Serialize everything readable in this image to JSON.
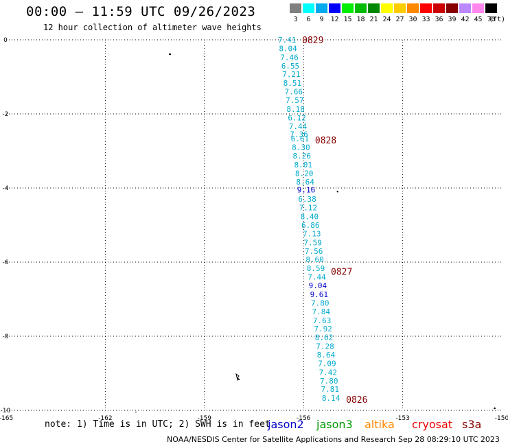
{
  "header": {
    "title": "00:00 – 11:59 UTC 09/26/2023",
    "subtitle": "12 hour collection of altimeter wave heights"
  },
  "legend": {
    "unit": "(ft)",
    "items": [
      {
        "label": "3",
        "color": "#808080"
      },
      {
        "label": "6",
        "color": "#00ffff"
      },
      {
        "label": "9",
        "color": "#00aaee"
      },
      {
        "label": "12",
        "color": "#0000ff"
      },
      {
        "label": "15",
        "color": "#00ee00"
      },
      {
        "label": "18",
        "color": "#00bb00"
      },
      {
        "label": "21",
        "color": "#008800"
      },
      {
        "label": "24",
        "color": "#ffff00"
      },
      {
        "label": "27",
        "color": "#ffcc00"
      },
      {
        "label": "30",
        "color": "#ff8800"
      },
      {
        "label": "33",
        "color": "#ff0000"
      },
      {
        "label": "36",
        "color": "#cc0000"
      },
      {
        "label": "39",
        "color": "#880000"
      },
      {
        "label": "42",
        "color": "#bb88ff"
      },
      {
        "label": "45",
        "color": "#ff88ee"
      },
      {
        "label": "70",
        "color": "#000000"
      }
    ]
  },
  "axes": {
    "lat_labels": [
      "0",
      "-2",
      "-4",
      "-6",
      "-8",
      "-10"
    ],
    "lon_labels": [
      "-165",
      "-162",
      "-159",
      "-156",
      "-153",
      "-150"
    ]
  },
  "time_markers": [
    {
      "label": "0829",
      "lat": 0.0
    },
    {
      "label": "0828",
      "lat": -2.7
    },
    {
      "label": "0827",
      "lat": -6.25
    },
    {
      "label": "0826",
      "lat": -9.7
    }
  ],
  "observations": [
    {
      "value": "7.41",
      "lon": -156.5,
      "lat": 0.0
    },
    {
      "value": "8.04",
      "lon": -156.47,
      "lat": -0.23
    },
    {
      "value": "7.46",
      "lon": -156.43,
      "lat": -0.47
    },
    {
      "value": "6.55",
      "lon": -156.4,
      "lat": -0.7
    },
    {
      "value": "7.21",
      "lon": -156.37,
      "lat": -0.93
    },
    {
      "value": "8.51",
      "lon": -156.34,
      "lat": -1.17
    },
    {
      "value": "7.66",
      "lon": -156.3,
      "lat": -1.4
    },
    {
      "value": "7.57",
      "lon": -156.27,
      "lat": -1.63
    },
    {
      "value": "8.18",
      "lon": -156.24,
      "lat": -1.87
    },
    {
      "value": "6.12",
      "lon": -156.2,
      "lat": -2.1
    },
    {
      "value": "7.44",
      "lon": -156.17,
      "lat": -2.33
    },
    {
      "value": "7.36",
      "lon": -156.14,
      "lat": -2.55
    },
    {
      "value": "6.61",
      "lon": -156.11,
      "lat": -2.67
    },
    {
      "value": "8.30",
      "lon": -156.08,
      "lat": -2.9
    },
    {
      "value": "8.26",
      "lon": -156.05,
      "lat": -3.13
    },
    {
      "value": "8.01",
      "lon": -156.01,
      "lat": -3.37
    },
    {
      "value": "8.20",
      "lon": -155.98,
      "lat": -3.6
    },
    {
      "value": "8.64",
      "lon": -155.95,
      "lat": -3.83
    },
    {
      "value": "9.16",
      "lon": -155.92,
      "lat": -4.05
    },
    {
      "value": "6.38",
      "lon": -155.89,
      "lat": -4.3
    },
    {
      "value": "7.12",
      "lon": -155.86,
      "lat": -4.53
    },
    {
      "value": "8.40",
      "lon": -155.82,
      "lat": -4.77
    },
    {
      "value": "6.86",
      "lon": -155.79,
      "lat": -5.0
    },
    {
      "value": "7.13",
      "lon": -155.75,
      "lat": -5.23
    },
    {
      "value": "7.59",
      "lon": -155.72,
      "lat": -5.47
    },
    {
      "value": "7.56",
      "lon": -155.69,
      "lat": -5.7
    },
    {
      "value": "8.60",
      "lon": -155.66,
      "lat": -5.93
    },
    {
      "value": "8.59",
      "lon": -155.63,
      "lat": -6.17
    },
    {
      "value": "7.44",
      "lon": -155.6,
      "lat": -6.4
    },
    {
      "value": "9.04",
      "lon": -155.57,
      "lat": -6.63
    },
    {
      "value": "9.61",
      "lon": -155.53,
      "lat": -6.87
    },
    {
      "value": "7.80",
      "lon": -155.5,
      "lat": -7.1
    },
    {
      "value": "7.84",
      "lon": -155.47,
      "lat": -7.33
    },
    {
      "value": "7.63",
      "lon": -155.44,
      "lat": -7.57
    },
    {
      "value": "7.92",
      "lon": -155.41,
      "lat": -7.8
    },
    {
      "value": "8.62",
      "lon": -155.38,
      "lat": -8.03
    },
    {
      "value": "7.28",
      "lon": -155.35,
      "lat": -8.27
    },
    {
      "value": "8.64",
      "lon": -155.32,
      "lat": -8.5
    },
    {
      "value": "7.09",
      "lon": -155.29,
      "lat": -8.73
    },
    {
      "value": "7.42",
      "lon": -155.26,
      "lat": -8.97
    },
    {
      "value": "7.80",
      "lon": -155.23,
      "lat": -9.2
    },
    {
      "value": "7.81",
      "lon": -155.2,
      "lat": -9.43
    },
    {
      "value": "8.14",
      "lon": -155.17,
      "lat": -9.67
    }
  ],
  "value_colors": {
    "cyan": "#00aacc",
    "blue": "#0000cc",
    "marker": "#880000"
  },
  "footer": {
    "note": "note: 1) Time is in UTC; 2) SWH is in feet",
    "satellites": [
      "jason2",
      "jason3",
      "altika",
      "cryosat",
      "s3a"
    ],
    "org": "NOAA/NESDIS Center for Satellite Applications and Research",
    "timestamp": "Sep 28 08:29:10 UTC 2023"
  }
}
